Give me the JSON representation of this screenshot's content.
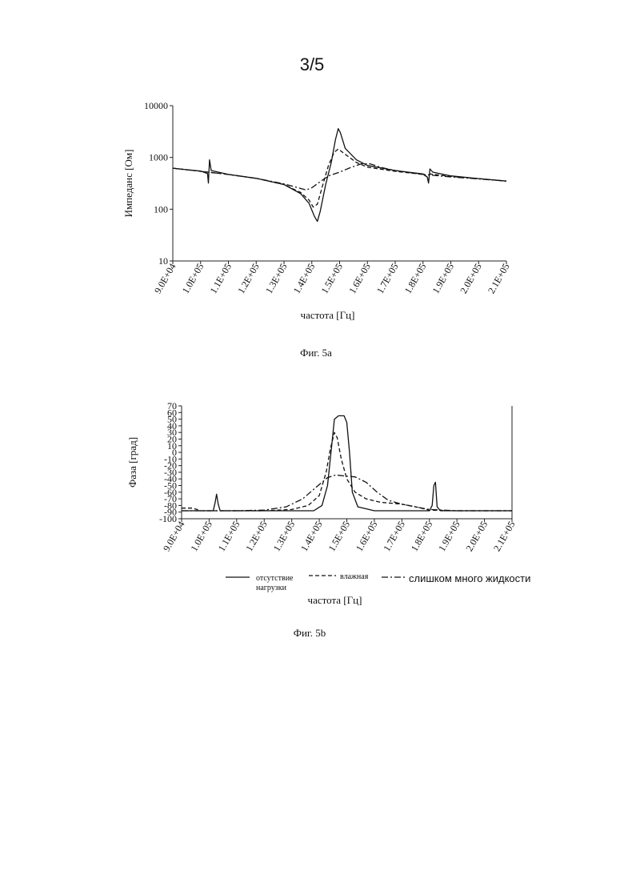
{
  "page": {
    "number": "3/5"
  },
  "figures": {
    "a": {
      "caption": "Фиг. 5a"
    },
    "b": {
      "caption": "Фиг. 5b"
    }
  },
  "legend": [
    {
      "label_lines": [
        "отсутствие",
        "нагрузки"
      ],
      "style": "solid"
    },
    {
      "label_lines": [
        "влажная"
      ],
      "style": "dashed"
    },
    {
      "label_lines": [
        "слишком много жидкости"
      ],
      "style": "dashdot"
    }
  ],
  "chart_data": [
    {
      "type": "line",
      "figure": "Фиг. 5a",
      "xlabel": "частота [Гц]",
      "ylabel": "Импеданс [Ом]",
      "yscale": "log",
      "xlim": [
        90000,
        210000
      ],
      "ylim": [
        10,
        10000
      ],
      "x_ticks": [
        "9.0E+04",
        "1.0E+05",
        "1.1E+05",
        "1.2E+05",
        "1.3E+05",
        "1.4E+05",
        "1.5E+05",
        "1.6E+05",
        "1.7E+05",
        "1.8E+05",
        "1.9E+05",
        "2.0E+05",
        "2.1E+05"
      ],
      "y_ticks": [
        "10",
        "100",
        "1000",
        "10000"
      ],
      "y_tick_values": [
        10,
        100,
        1000,
        10000
      ],
      "grid": false,
      "series": [
        {
          "style": "solid",
          "color": "#111111",
          "points": [
            [
              90000,
              620
            ],
            [
              95000,
              580
            ],
            [
              100000,
              545
            ],
            [
              102500,
              490
            ],
            [
              102800,
              320
            ],
            [
              103200,
              900
            ],
            [
              103800,
              560
            ],
            [
              110000,
              470
            ],
            [
              120000,
              395
            ],
            [
              130000,
              300
            ],
            [
              136000,
              200
            ],
            [
              139000,
              130
            ],
            [
              141000,
              72
            ],
            [
              142000,
              58
            ],
            [
              143000,
              90
            ],
            [
              145000,
              300
            ],
            [
              147000,
              800
            ],
            [
              148500,
              2200
            ],
            [
              149500,
              3600
            ],
            [
              150300,
              3000
            ],
            [
              152000,
              1500
            ],
            [
              156000,
              900
            ],
            [
              160000,
              700
            ],
            [
              170000,
              560
            ],
            [
              180000,
              480
            ],
            [
              181500,
              420
            ],
            [
              182000,
              320
            ],
            [
              182500,
              600
            ],
            [
              183500,
              520
            ],
            [
              190000,
              440
            ],
            [
              200000,
              390
            ],
            [
              210000,
              350
            ]
          ]
        },
        {
          "style": "dashed",
          "color": "#111111",
          "points": [
            [
              90000,
              620
            ],
            [
              100000,
              540
            ],
            [
              110000,
              470
            ],
            [
              120000,
              395
            ],
            [
              130000,
              300
            ],
            [
              136000,
              210
            ],
            [
              139000,
              150
            ],
            [
              140500,
              110
            ],
            [
              142000,
              125
            ],
            [
              144000,
              300
            ],
            [
              146000,
              700
            ],
            [
              148000,
              1250
            ],
            [
              149500,
              1450
            ],
            [
              152000,
              1150
            ],
            [
              156000,
              800
            ],
            [
              160000,
              650
            ],
            [
              170000,
              540
            ],
            [
              180000,
              470
            ],
            [
              181500,
              420
            ],
            [
              182000,
              360
            ],
            [
              182500,
              480
            ],
            [
              190000,
              430
            ],
            [
              200000,
              390
            ],
            [
              210000,
              350
            ]
          ]
        },
        {
          "style": "dashdot",
          "color": "#111111",
          "points": [
            [
              90000,
              620
            ],
            [
              100000,
              540
            ],
            [
              110000,
              470
            ],
            [
              120000,
              395
            ],
            [
              130000,
              310
            ],
            [
              135000,
              260
            ],
            [
              138000,
              235
            ],
            [
              140000,
              260
            ],
            [
              143000,
              340
            ],
            [
              146000,
              440
            ],
            [
              150000,
              520
            ],
            [
              154000,
              640
            ],
            [
              158000,
              760
            ],
            [
              161000,
              750
            ],
            [
              165000,
              640
            ],
            [
              170000,
              560
            ],
            [
              180000,
              470
            ],
            [
              190000,
              420
            ],
            [
              200000,
              385
            ],
            [
              210000,
              350
            ]
          ]
        }
      ]
    },
    {
      "type": "line",
      "figure": "Фиг. 5b",
      "xlabel": "частота [Гц]",
      "ylabel": "Фаза [град]",
      "xlim": [
        90000,
        210000
      ],
      "ylim": [
        -100,
        70
      ],
      "x_ticks": [
        "9.0E+04",
        "1.0E+05",
        "1.1E+05",
        "1.2E+05",
        "1.3E+05",
        "1.4E+05",
        "1.5E+05",
        "1.6E+05",
        "1.7E+05",
        "1.8E+05",
        "1.9E+05",
        "2.0E+05",
        "2.1E+05"
      ],
      "y_ticks": [
        "70",
        "60",
        "50",
        "40",
        "30",
        "20",
        "10",
        "0",
        "-10",
        "-20",
        "-30",
        "-40",
        "-50",
        "-60",
        "-70",
        "-80",
        "-90",
        "-100"
      ],
      "y_tick_values": [
        70,
        60,
        50,
        40,
        30,
        20,
        10,
        0,
        -10,
        -20,
        -30,
        -40,
        -50,
        -60,
        -70,
        -80,
        -90,
        -100
      ],
      "grid": false,
      "series": [
        {
          "style": "solid",
          "color": "#111111",
          "points": [
            [
              90000,
              -88
            ],
            [
              100000,
              -88
            ],
            [
              101500,
              -88
            ],
            [
              102200,
              -75
            ],
            [
              102700,
              -63
            ],
            [
              103300,
              -78
            ],
            [
              104000,
              -88
            ],
            [
              130000,
              -88
            ],
            [
              138000,
              -88
            ],
            [
              141000,
              -80
            ],
            [
              143000,
              -50
            ],
            [
              144500,
              10
            ],
            [
              145500,
              50
            ],
            [
              147000,
              55
            ],
            [
              149000,
              55
            ],
            [
              150000,
              45
            ],
            [
              151000,
              0
            ],
            [
              152000,
              -60
            ],
            [
              154000,
              -82
            ],
            [
              160000,
              -88
            ],
            [
              175000,
              -88
            ],
            [
              180000,
              -88
            ],
            [
              181000,
              -80
            ],
            [
              181600,
              -50
            ],
            [
              182200,
              -45
            ],
            [
              182800,
              -82
            ],
            [
              184000,
              -88
            ],
            [
              210000,
              -88
            ]
          ]
        },
        {
          "style": "dashed",
          "color": "#111111",
          "points": [
            [
              90000,
              -84
            ],
            [
              94000,
              -84
            ],
            [
              97000,
              -88
            ],
            [
              120000,
              -88
            ],
            [
              130000,
              -86
            ],
            [
              136000,
              -80
            ],
            [
              140000,
              -65
            ],
            [
              142500,
              -30
            ],
            [
              144000,
              5
            ],
            [
              145500,
              30
            ],
            [
              146500,
              22
            ],
            [
              148000,
              -10
            ],
            [
              150000,
              -40
            ],
            [
              153000,
              -60
            ],
            [
              157000,
              -70
            ],
            [
              162000,
              -75
            ],
            [
              170000,
              -78
            ],
            [
              175000,
              -82
            ],
            [
              180000,
              -87
            ],
            [
              190000,
              -88
            ],
            [
              210000,
              -88
            ]
          ]
        },
        {
          "style": "dashdot",
          "color": "#111111",
          "points": [
            [
              90000,
              -88
            ],
            [
              110000,
              -88
            ],
            [
              120000,
              -87
            ],
            [
              128000,
              -82
            ],
            [
              134000,
              -70
            ],
            [
              139000,
              -52
            ],
            [
              143000,
              -38
            ],
            [
              146000,
              -34
            ],
            [
              150000,
              -36
            ],
            [
              153000,
              -37
            ],
            [
              157000,
              -45
            ],
            [
              161000,
              -60
            ],
            [
              165000,
              -72
            ],
            [
              170000,
              -78
            ],
            [
              175000,
              -82
            ],
            [
              180000,
              -86
            ],
            [
              190000,
              -88
            ],
            [
              210000,
              -88
            ]
          ]
        }
      ]
    }
  ]
}
